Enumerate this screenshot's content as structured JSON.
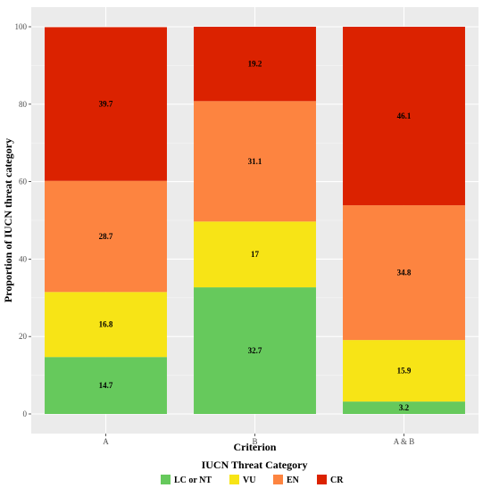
{
  "chart_data": {
    "type": "bar",
    "stacked": true,
    "categories": [
      "A",
      "B",
      "A & B"
    ],
    "series": [
      {
        "name": "LC or NT",
        "values": [
          14.7,
          32.7,
          3.2
        ],
        "color": "#66c95c"
      },
      {
        "name": "VU",
        "values": [
          16.8,
          17,
          15.9
        ],
        "color": "#f7e416"
      },
      {
        "name": "EN",
        "values": [
          28.7,
          31.1,
          34.8
        ],
        "color": "#fd8440"
      },
      {
        "name": "CR",
        "values": [
          39.7,
          19.2,
          46.1
        ],
        "color": "#db2200"
      }
    ],
    "xlabel": "Criterion",
    "ylabel": "Proportion of IUCN threat category",
    "ylim": [
      0,
      100
    ],
    "yticks": [
      0,
      20,
      40,
      60,
      80,
      100
    ],
    "grid": true,
    "legend_title": "IUCN Threat Category",
    "legend_position": "bottom"
  }
}
